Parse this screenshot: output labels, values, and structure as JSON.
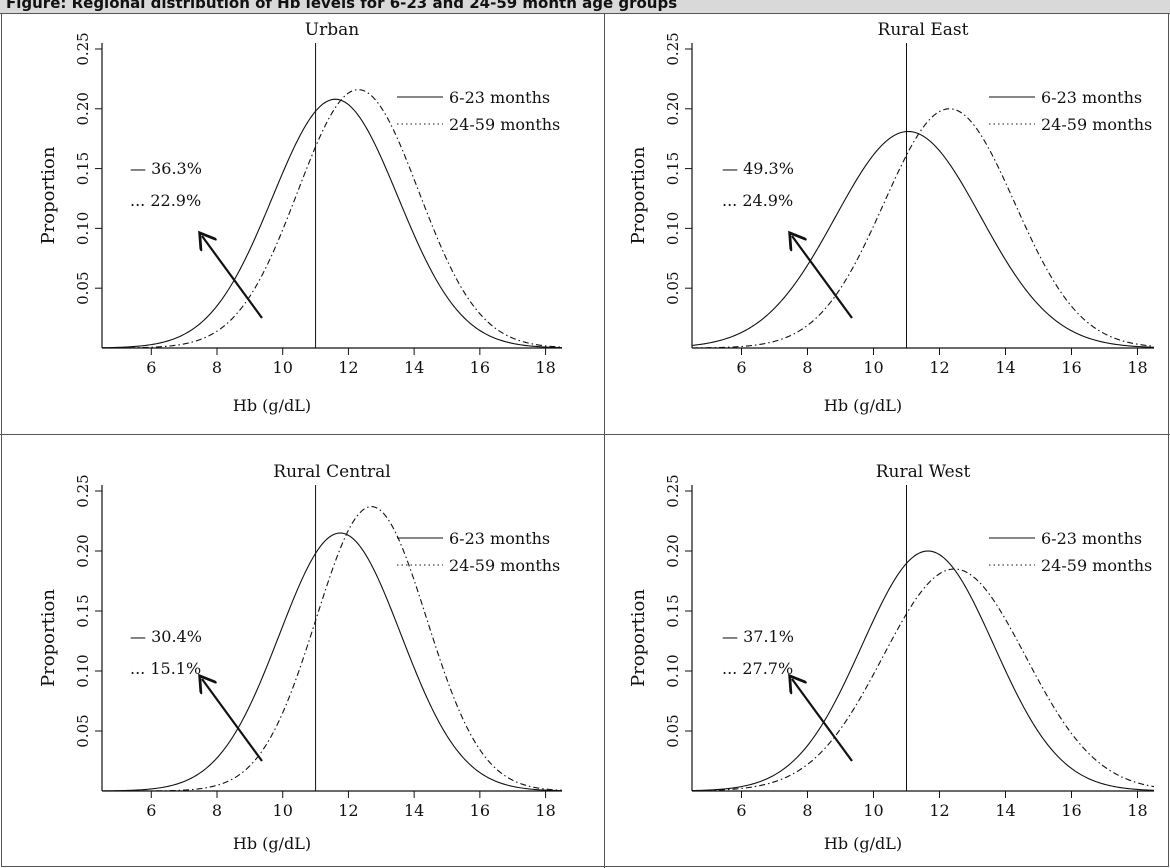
{
  "figure": {
    "header_text": "Figure: Regional distribution of Hb levels for 6-23 and 24-59 month age groups",
    "colors": {
      "line": "#111111",
      "border": "#555555",
      "header_bg": "#d9d9d9"
    }
  },
  "chart_data": [
    {
      "type": "line",
      "title": "Urban",
      "xlabel": "Hb (g/dL)",
      "ylabel": "Proportion",
      "xlim": [
        4.5,
        18.5
      ],
      "ylim": [
        0,
        0.255
      ],
      "xticks": [
        6,
        8,
        10,
        12,
        14,
        16,
        18
      ],
      "yticks": [
        0.05,
        0.1,
        0.15,
        0.2,
        0.25
      ],
      "ytick_labels": [
        "0.05",
        "0.10",
        "0.15",
        "0.20",
        "0.25"
      ],
      "cutoff": 11,
      "legend_position": "top-right",
      "series": [
        {
          "name": "6-23 months",
          "style": "solid",
          "mean": 11.6,
          "sd": 1.91,
          "peak": 0.208,
          "pct_below_cutoff": "— 36.3%"
        },
        {
          "name": "24-59 months",
          "style": "dotted",
          "mean": 12.3,
          "sd": 1.84,
          "peak": 0.216,
          "pct_below_cutoff": "... 22.9%"
        }
      ]
    },
    {
      "type": "line",
      "title": "Rural East",
      "xlabel": "Hb (g/dL)",
      "ylabel": "Proportion",
      "xlim": [
        4.5,
        18.5
      ],
      "ylim": [
        0,
        0.255
      ],
      "xticks": [
        6,
        8,
        10,
        12,
        14,
        16,
        18
      ],
      "yticks": [
        0.05,
        0.1,
        0.15,
        0.2,
        0.25
      ],
      "ytick_labels": [
        "0.05",
        "0.10",
        "0.15",
        "0.20",
        "0.25"
      ],
      "cutoff": 11,
      "legend_position": "top-right",
      "series": [
        {
          "name": "6-23 months",
          "style": "solid",
          "mean": 11.05,
          "sd": 2.2,
          "peak": 0.181,
          "pct_below_cutoff": "— 49.3%"
        },
        {
          "name": "24-59 months",
          "style": "dotted",
          "mean": 12.3,
          "sd": 1.98,
          "peak": 0.2,
          "pct_below_cutoff": "... 24.9%"
        }
      ]
    },
    {
      "type": "line",
      "title": "Rural Central",
      "xlabel": "Hb (g/dL)",
      "ylabel": "Proportion",
      "xlim": [
        4.5,
        18.5
      ],
      "ylim": [
        0,
        0.255
      ],
      "xticks": [
        6,
        8,
        10,
        12,
        14,
        16,
        18
      ],
      "yticks": [
        0.05,
        0.1,
        0.15,
        0.2,
        0.25
      ],
      "ytick_labels": [
        "0.05",
        "0.10",
        "0.15",
        "0.20",
        "0.25"
      ],
      "cutoff": 11,
      "legend_position": "top-right",
      "series": [
        {
          "name": "6-23 months",
          "style": "solid",
          "mean": 11.75,
          "sd": 1.85,
          "peak": 0.215,
          "pct_below_cutoff": "— 30.4%"
        },
        {
          "name": "24-59 months",
          "style": "dotted",
          "mean": 12.7,
          "sd": 1.68,
          "peak": 0.237,
          "pct_below_cutoff": "... 15.1%"
        }
      ]
    },
    {
      "type": "line",
      "title": "Rural West",
      "xlabel": "Hb (g/dL)",
      "ylabel": "Proportion",
      "xlim": [
        4.5,
        18.5
      ],
      "ylim": [
        0,
        0.255
      ],
      "xticks": [
        6,
        8,
        10,
        12,
        14,
        16,
        18
      ],
      "yticks": [
        0.05,
        0.1,
        0.15,
        0.2,
        0.25
      ],
      "ytick_labels": [
        "0.05",
        "0.10",
        "0.15",
        "0.20",
        "0.25"
      ],
      "cutoff": 11,
      "legend_position": "top-right",
      "series": [
        {
          "name": "6-23 months",
          "style": "solid",
          "mean": 11.65,
          "sd": 2.0,
          "peak": 0.2,
          "pct_below_cutoff": "— 37.1%"
        },
        {
          "name": "24-59 months",
          "style": "dotted",
          "mean": 12.45,
          "sd": 2.16,
          "peak": 0.185,
          "pct_below_cutoff": "... 27.7%"
        }
      ]
    }
  ]
}
